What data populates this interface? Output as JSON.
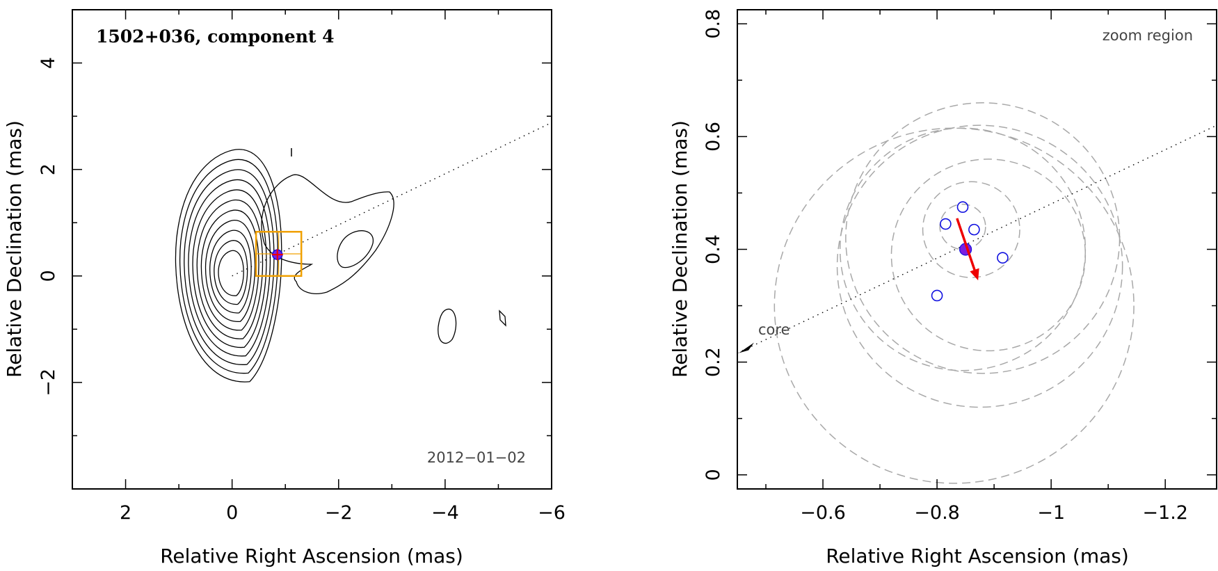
{
  "chart_data": [
    {
      "type": "scatter",
      "title": "1502+036, component 4",
      "xlabel": "Relative Right Ascension (mas)",
      "ylabel": "Relative Declination (mas)",
      "xlim": [
        3,
        -6
      ],
      "ylim": [
        -4,
        5
      ],
      "xticks": [
        2,
        0,
        -2,
        -4,
        -6
      ],
      "xtick_labels": [
        "2",
        "0",
        "−2",
        "−4",
        "−6"
      ],
      "yticks": [
        -2,
        0,
        2,
        4
      ],
      "ytick_labels": [
        "−2",
        "0",
        "2",
        "4"
      ],
      "annotation": "2012−01−02",
      "contour_center": [
        0,
        0
      ],
      "contour_levels": 11,
      "component_position": [
        -0.85,
        0.4
      ],
      "zoom_box": {
        "x": [
          -0.45,
          -1.3
        ],
        "y": [
          0,
          0.83
        ]
      },
      "jet_axis": {
        "from": [
          0,
          0
        ],
        "to": [
          -6,
          2.88
        ],
        "style": "dotted"
      },
      "legend": "none"
    },
    {
      "type": "scatter",
      "title": "",
      "annotation": "zoom region",
      "xlabel": "Relative Right Ascension (mas)",
      "ylabel": "Relative Declination (mas)",
      "xlim": [
        -0.45,
        -1.29
      ],
      "ylim": [
        -0.025,
        0.825
      ],
      "xticks": [
        -0.6,
        -0.8,
        -1,
        -1.2
      ],
      "xtick_labels": [
        "−0.6",
        "−0.8",
        "−1",
        "−1.2"
      ],
      "yticks": [
        0,
        0.2,
        0.4,
        0.6,
        0.8
      ],
      "ytick_labels": [
        "0",
        "0.2",
        "0.4",
        "0.6",
        "0.8"
      ],
      "series": [
        {
          "kind": "epoch_positions",
          "marker": "open-circle",
          "color": "#1010e0",
          "points": [
            [
              -0.845,
              0.475
            ],
            [
              -0.815,
              0.445
            ],
            [
              -0.865,
              0.435
            ],
            [
              -0.915,
              0.385
            ],
            [
              -0.8,
              0.318
            ]
          ]
        },
        {
          "kind": "mean_position",
          "marker": "filled-circle",
          "color": "#7b1fe0",
          "points": [
            [
              -0.85,
              0.4
            ]
          ]
        }
      ],
      "error_circles": [
        {
          "center": [
            -0.845,
            0.44
          ],
          "radius": 0.04
        },
        {
          "center": [
            -0.86,
            0.435
          ],
          "radius": 0.085
        },
        {
          "center": [
            -0.89,
            0.39
          ],
          "radius": 0.17
        },
        {
          "center": [
            -0.845,
            0.4
          ],
          "radius": 0.215
        },
        {
          "center": [
            -0.875,
            0.37
          ],
          "radius": 0.25
        },
        {
          "center": [
            -0.88,
            0.42
          ],
          "radius": 0.24
        },
        {
          "center": [
            -0.83,
            0.3
          ],
          "radius": 0.315
        }
      ],
      "velocity_vector": {
        "from": [
          -0.835,
          0.455
        ],
        "to": [
          -0.872,
          0.345
        ],
        "color": "#ee0000"
      },
      "jet_axis": {
        "from": [
          -0.45,
          0.216
        ],
        "to": [
          -1.29,
          0.62
        ],
        "style": "dotted"
      },
      "core_marker": {
        "label": "core"
      },
      "legend": "none"
    }
  ]
}
